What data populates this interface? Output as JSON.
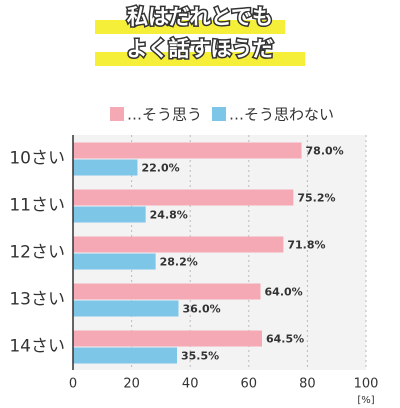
{
  "chart_data": {
    "type": "bar",
    "orientation": "horizontal",
    "title": [
      "私はだれとでも",
      "よく話すほうだ"
    ],
    "categories": [
      "10さい",
      "11さい",
      "12さい",
      "13さい",
      "14さい"
    ],
    "series": [
      {
        "name": "…そう思う",
        "color": "#f4a9b5",
        "values": [
          78.0,
          75.2,
          71.8,
          64.0,
          64.5
        ],
        "value_labels": [
          "78.0%",
          "75.2%",
          "71.8%",
          "64.0%",
          "64.5%"
        ]
      },
      {
        "name": "…そう思わない",
        "color": "#7dc6e8",
        "values": [
          22.0,
          24.8,
          28.2,
          36.0,
          35.5
        ],
        "value_labels": [
          "22.0%",
          "24.8%",
          "28.2%",
          "36.0%",
          "35.5%"
        ]
      }
    ],
    "xlim": [
      0,
      100
    ],
    "xticks": [
      0,
      20,
      40,
      60,
      80,
      100
    ],
    "x_unit": "[%]",
    "grid": true,
    "legend": "top"
  }
}
